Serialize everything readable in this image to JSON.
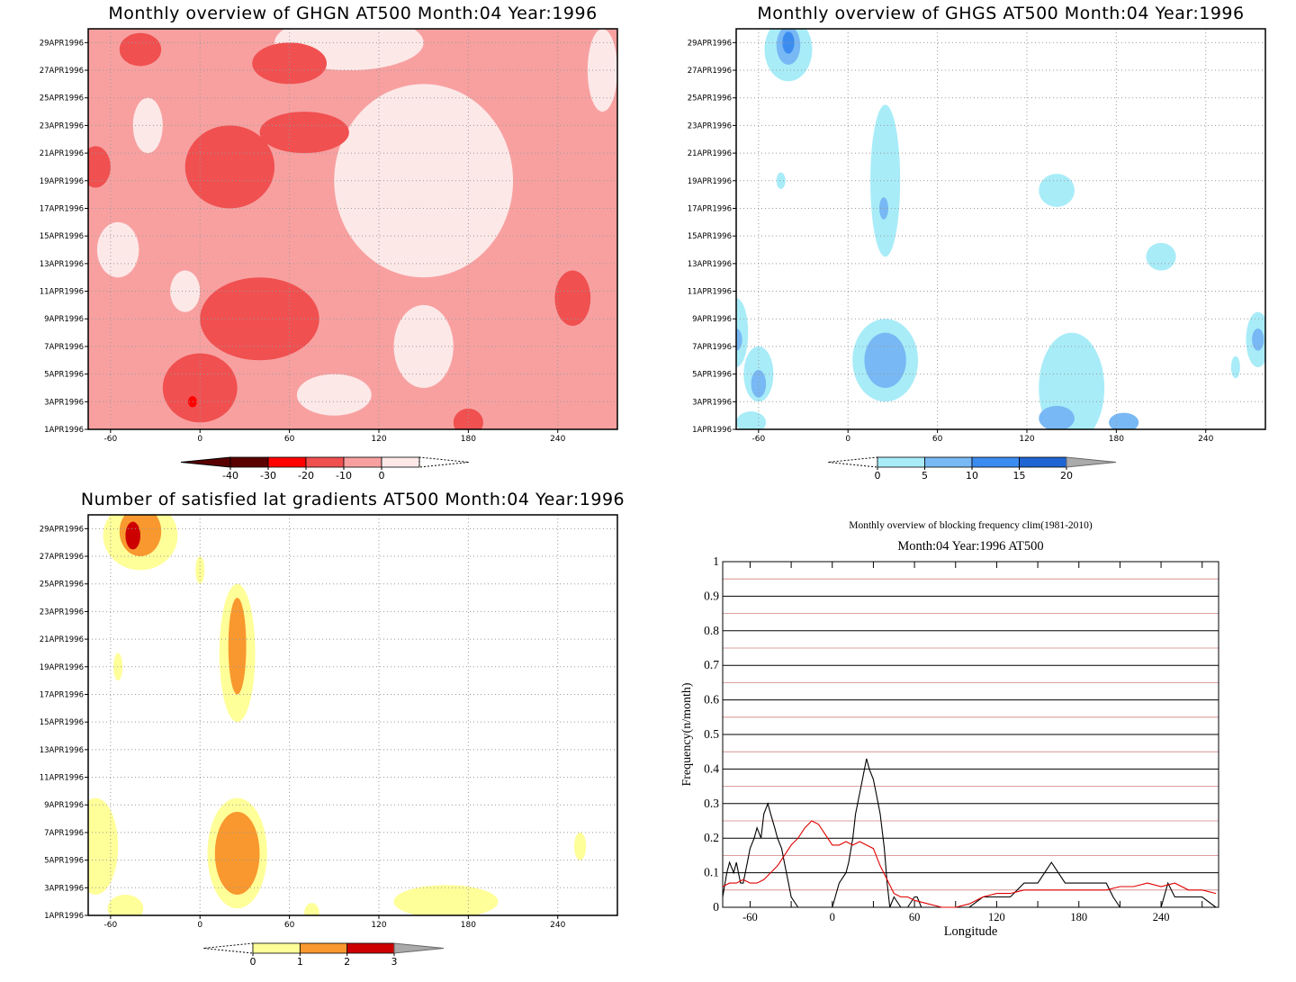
{
  "chart_data": [
    {
      "type": "heatmap",
      "title": "Monthly overview of GHGN AT500 Month:04 Year:1996",
      "x_ticks": [
        -60,
        0,
        60,
        120,
        180,
        240
      ],
      "xlim": [
        -75,
        280
      ],
      "y_ticks": [
        "1APR1996",
        "3APR1996",
        "5APR1996",
        "7APR1996",
        "9APR1996",
        "11APR1996",
        "13APR1996",
        "15APR1996",
        "17APR1996",
        "19APR1996",
        "21APR1996",
        "23APR1996",
        "25APR1996",
        "27APR1996",
        "29APR1996"
      ],
      "ylim_days": [
        1,
        30
      ],
      "colorbar": {
        "labels": [
          "-40",
          "-30",
          "-20",
          "-10",
          "0"
        ],
        "colors": [
          "#5a0000",
          "#ff0000",
          "#f05050",
          "#f8a0a0",
          "#fde8e8"
        ],
        "extend": "both"
      },
      "blobs": [
        {
          "lon": -40,
          "day": 28.5,
          "rx": 14,
          "ry": 1.2,
          "level": 2
        },
        {
          "lon": 20,
          "day": 20,
          "rx": 30,
          "ry": 3,
          "level": 2
        },
        {
          "lon": 40,
          "day": 9,
          "rx": 40,
          "ry": 3,
          "level": 2
        },
        {
          "lon": 0,
          "day": 4,
          "rx": 25,
          "ry": 2.5,
          "level": 2
        },
        {
          "lon": 60,
          "day": 27.5,
          "rx": 25,
          "ry": 1.5,
          "level": 2
        },
        {
          "lon": 70,
          "day": 22.5,
          "rx": 30,
          "ry": 1.5,
          "level": 2
        },
        {
          "lon": 250,
          "day": 10.5,
          "rx": 12,
          "ry": 2,
          "level": 2
        },
        {
          "lon": -70,
          "day": 20,
          "rx": 10,
          "ry": 1.5,
          "level": 2
        },
        {
          "lon": 180,
          "day": 1.5,
          "rx": 10,
          "ry": 1,
          "level": 2
        },
        {
          "lon": -5,
          "day": 3,
          "rx": 3,
          "ry": 0.4,
          "level": 1
        }
      ],
      "light_blobs": [
        {
          "lon": 150,
          "day": 19,
          "rx": 60,
          "ry": 7
        },
        {
          "lon": -55,
          "day": 14,
          "rx": 14,
          "ry": 2
        },
        {
          "lon": -10,
          "day": 11,
          "rx": 10,
          "ry": 1.5
        },
        {
          "lon": -35,
          "day": 23,
          "rx": 10,
          "ry": 2
        },
        {
          "lon": 100,
          "day": 29,
          "rx": 50,
          "ry": 2
        },
        {
          "lon": 90,
          "day": 3.5,
          "rx": 25,
          "ry": 1.5
        },
        {
          "lon": 150,
          "day": 7,
          "rx": 20,
          "ry": 3
        },
        {
          "lon": 270,
          "day": 27,
          "rx": 10,
          "ry": 3
        }
      ]
    },
    {
      "type": "heatmap",
      "title": "Monthly overview of GHGS AT500 Month:04 Year:1996",
      "x_ticks": [
        -60,
        0,
        60,
        120,
        180,
        240
      ],
      "xlim": [
        -75,
        280
      ],
      "y_ticks": [
        "1APR1996",
        "3APR1996",
        "5APR1996",
        "7APR1996",
        "9APR1996",
        "11APR1996",
        "13APR1996",
        "15APR1996",
        "17APR1996",
        "19APR1996",
        "21APR1996",
        "23APR1996",
        "25APR1996",
        "27APR1996",
        "29APR1996"
      ],
      "ylim_days": [
        1,
        30
      ],
      "colorbar": {
        "labels": [
          "0",
          "5",
          "10",
          "15",
          "20"
        ],
        "colors": [
          "#a8ecf8",
          "#78b8f4",
          "#3c8cf0",
          "#1e64d2"
        ],
        "extend": "both"
      },
      "blobs": [
        {
          "lon": -40,
          "day": 28.5,
          "rx": 16,
          "ry": 2.3,
          "level": 1
        },
        {
          "lon": -40,
          "day": 28.8,
          "rx": 8,
          "ry": 1.4,
          "level": 2
        },
        {
          "lon": -40,
          "day": 29,
          "rx": 4,
          "ry": 0.8,
          "level": 3
        },
        {
          "lon": 25,
          "day": 19,
          "rx": 10,
          "ry": 5.5,
          "level": 1
        },
        {
          "lon": 24,
          "day": 17,
          "rx": 3,
          "ry": 0.8,
          "level": 2
        },
        {
          "lon": 25,
          "day": 6,
          "rx": 22,
          "ry": 3,
          "level": 1
        },
        {
          "lon": 25,
          "day": 6,
          "rx": 14,
          "ry": 2,
          "level": 2
        },
        {
          "lon": -60,
          "day": 5,
          "rx": 10,
          "ry": 2,
          "level": 1
        },
        {
          "lon": -60,
          "day": 4.3,
          "rx": 5,
          "ry": 1,
          "level": 2
        },
        {
          "lon": -75,
          "day": 8,
          "rx": 8,
          "ry": 2.5,
          "level": 1
        },
        {
          "lon": -75,
          "day": 7.5,
          "rx": 4,
          "ry": 0.8,
          "level": 2
        },
        {
          "lon": 140,
          "day": 18.3,
          "rx": 12,
          "ry": 1.2,
          "level": 1
        },
        {
          "lon": 210,
          "day": 13.5,
          "rx": 10,
          "ry": 1,
          "level": 1
        },
        {
          "lon": 150,
          "day": 4,
          "rx": 22,
          "ry": 4,
          "level": 1
        },
        {
          "lon": 140,
          "day": 1.8,
          "rx": 12,
          "ry": 0.9,
          "level": 2
        },
        {
          "lon": 185,
          "day": 1.5,
          "rx": 10,
          "ry": 0.7,
          "level": 2
        },
        {
          "lon": 275,
          "day": 7.5,
          "rx": 8,
          "ry": 2,
          "level": 1
        },
        {
          "lon": 275,
          "day": 7.5,
          "rx": 4,
          "ry": 0.8,
          "level": 2
        },
        {
          "lon": -65,
          "day": 1.5,
          "rx": 10,
          "ry": 0.8,
          "level": 1
        },
        {
          "lon": 260,
          "day": 5.5,
          "rx": 3,
          "ry": 0.8,
          "level": 1
        },
        {
          "lon": -45,
          "day": 19,
          "rx": 3,
          "ry": 0.6,
          "level": 1
        }
      ]
    },
    {
      "type": "heatmap",
      "title": "Number of satisfied lat gradients AT500 Month:04 Year:1996",
      "x_ticks": [
        -60,
        0,
        60,
        120,
        180,
        240
      ],
      "xlim": [
        -75,
        280
      ],
      "y_ticks": [
        "1APR1996",
        "3APR1996",
        "5APR1996",
        "7APR1996",
        "9APR1996",
        "11APR1996",
        "13APR1996",
        "15APR1996",
        "17APR1996",
        "19APR1996",
        "21APR1996",
        "23APR1996",
        "25APR1996",
        "27APR1996",
        "29APR1996"
      ],
      "ylim_days": [
        1,
        30
      ],
      "colorbar": {
        "labels": [
          "0",
          "1",
          "2",
          "3"
        ],
        "colors": [
          "#ffff99",
          "#f8982e",
          "#cc0000"
        ],
        "extend": "both"
      },
      "blobs": [
        {
          "lon": -40,
          "day": 28.5,
          "rx": 25,
          "ry": 2.5,
          "level": 1
        },
        {
          "lon": -40,
          "day": 28.8,
          "rx": 14,
          "ry": 1.8,
          "level": 2
        },
        {
          "lon": -45,
          "day": 28.5,
          "rx": 5,
          "ry": 1,
          "level": 3
        },
        {
          "lon": 25,
          "day": 20,
          "rx": 12,
          "ry": 5,
          "level": 1
        },
        {
          "lon": 25,
          "day": 20.5,
          "rx": 6,
          "ry": 3.5,
          "level": 2
        },
        {
          "lon": 25,
          "day": 5.5,
          "rx": 20,
          "ry": 4,
          "level": 1
        },
        {
          "lon": 25,
          "day": 5.5,
          "rx": 15,
          "ry": 3,
          "level": 2
        },
        {
          "lon": -70,
          "day": 6,
          "rx": 15,
          "ry": 3.5,
          "level": 1
        },
        {
          "lon": -55,
          "day": 19,
          "rx": 3,
          "ry": 1,
          "level": 1
        },
        {
          "lon": 165,
          "day": 2,
          "rx": 35,
          "ry": 1.2,
          "level": 1
        },
        {
          "lon": -50,
          "day": 1.5,
          "rx": 12,
          "ry": 1,
          "level": 1
        },
        {
          "lon": 255,
          "day": 6,
          "rx": 4,
          "ry": 1,
          "level": 1
        },
        {
          "lon": 0,
          "day": 26,
          "rx": 3,
          "ry": 1,
          "level": 1
        },
        {
          "lon": 75,
          "day": 1.2,
          "rx": 5,
          "ry": 0.7,
          "level": 1
        }
      ]
    },
    {
      "type": "line",
      "title": "Monthly overview of blocking frequency clim(1981-2010)",
      "subtitle": "Month:04 Year:1996  AT500",
      "xlabel": "Longitude",
      "ylabel": "Frequency(n/month)",
      "xlim": [
        -80,
        282
      ],
      "ylim": [
        0,
        1
      ],
      "x_ticks": [
        -60,
        0,
        60,
        120,
        180,
        240
      ],
      "y_ticks": [
        0,
        0.1,
        0.2,
        0.3,
        0.4,
        0.5,
        0.6,
        0.7,
        0.8,
        0.9,
        1
      ],
      "y_tick_labels": [
        "0",
        "0.1",
        "0.2",
        "0.3",
        "0.4",
        "0.5",
        "0.6",
        "0.7",
        "0.8",
        "0.9",
        "1"
      ],
      "grid": true,
      "series": [
        {
          "color": "#000000",
          "x": [
            -80,
            -77,
            -75,
            -72,
            -70,
            -67,
            -65,
            -62,
            -60,
            -57,
            -55,
            -52,
            -50,
            -47,
            -45,
            -42,
            -40,
            -37,
            -35,
            -32,
            -30,
            -25,
            -20,
            -18,
            -15,
            -10,
            -5,
            0,
            5,
            10,
            12,
            15,
            17,
            20,
            22,
            25,
            27,
            30,
            32,
            35,
            38,
            40,
            42,
            45,
            50,
            55,
            60,
            62,
            65,
            70,
            75,
            80,
            90,
            100,
            110,
            115,
            120,
            130,
            140,
            150,
            155,
            160,
            165,
            170,
            175,
            180,
            190,
            200,
            205,
            210,
            220,
            230,
            240,
            245,
            250,
            260,
            270,
            280
          ],
          "y": [
            0.03,
            0.1,
            0.13,
            0.1,
            0.13,
            0.07,
            0.07,
            0.13,
            0.17,
            0.2,
            0.23,
            0.2,
            0.27,
            0.3,
            0.27,
            0.23,
            0.2,
            0.17,
            0.13,
            0.07,
            0.03,
            0.0,
            0.0,
            0.0,
            0.0,
            0.0,
            0.0,
            0.0,
            0.07,
            0.1,
            0.13,
            0.2,
            0.27,
            0.33,
            0.37,
            0.43,
            0.4,
            0.37,
            0.33,
            0.27,
            0.17,
            0.07,
            0.0,
            0.03,
            0.0,
            0.0,
            0.03,
            0.03,
            0.0,
            0.0,
            0.0,
            0.0,
            0.0,
            0.0,
            0.03,
            0.03,
            0.03,
            0.03,
            0.07,
            0.07,
            0.1,
            0.13,
            0.1,
            0.07,
            0.07,
            0.07,
            0.07,
            0.07,
            0.03,
            0.0,
            0.0,
            0.0,
            0.0,
            0.07,
            0.03,
            0.03,
            0.03,
            0.0
          ]
        },
        {
          "color": "#e00000",
          "x": [
            -80,
            -75,
            -70,
            -65,
            -60,
            -55,
            -50,
            -45,
            -40,
            -35,
            -30,
            -25,
            -20,
            -15,
            -10,
            -5,
            0,
            5,
            10,
            15,
            20,
            25,
            30,
            35,
            40,
            45,
            50,
            55,
            60,
            70,
            80,
            90,
            100,
            110,
            120,
            130,
            140,
            150,
            160,
            170,
            180,
            190,
            200,
            210,
            220,
            230,
            240,
            250,
            260,
            270,
            280
          ],
          "y": [
            0.06,
            0.07,
            0.07,
            0.08,
            0.07,
            0.07,
            0.08,
            0.1,
            0.12,
            0.15,
            0.18,
            0.2,
            0.23,
            0.25,
            0.24,
            0.21,
            0.18,
            0.18,
            0.19,
            0.18,
            0.19,
            0.18,
            0.17,
            0.12,
            0.08,
            0.04,
            0.03,
            0.03,
            0.02,
            0.01,
            0.0,
            0.0,
            0.01,
            0.03,
            0.04,
            0.04,
            0.05,
            0.05,
            0.05,
            0.05,
            0.05,
            0.05,
            0.05,
            0.06,
            0.06,
            0.07,
            0.06,
            0.07,
            0.05,
            0.05,
            0.04
          ]
        }
      ]
    }
  ]
}
